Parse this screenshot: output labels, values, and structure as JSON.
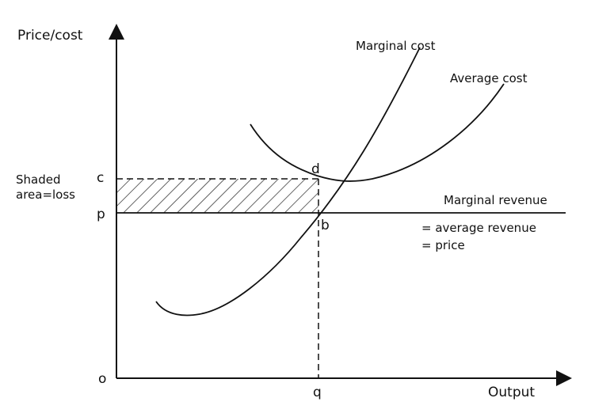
{
  "axes": {
    "y_label": "Price/cost",
    "x_label": "Output",
    "origin_label": "o"
  },
  "points": {
    "c": "c",
    "p": "p",
    "d": "d",
    "b": "b",
    "q": "q"
  },
  "curves": {
    "marginal_cost": "Marginal cost",
    "average_cost": "Average cost",
    "marginal_revenue": "Marginal revenue",
    "average_revenue": "= average revenue",
    "price": "= price"
  },
  "annotation": {
    "line1": "Shaded",
    "line2": "area=loss"
  }
}
